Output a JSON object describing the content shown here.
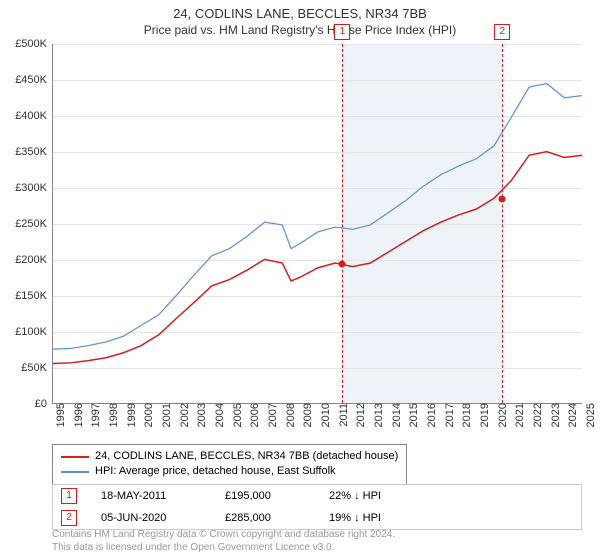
{
  "title": "24, CODLINS LANE, BECCLES, NR34 7BB",
  "subtitle": "Price paid vs. HM Land Registry's House Price Index (HPI)",
  "chart": {
    "type": "line",
    "background_color": "#ffffff",
    "grid_color": "#e5e5e5",
    "axis_color": "#888888",
    "ylim": [
      0,
      500000
    ],
    "ytick_step": 50000,
    "y_labels": [
      "£0",
      "£50K",
      "£100K",
      "£150K",
      "£200K",
      "£250K",
      "£300K",
      "£350K",
      "£400K",
      "£450K",
      "£500K"
    ],
    "xlim": [
      1995,
      2025
    ],
    "x_labels": [
      "1995",
      "1996",
      "1997",
      "1998",
      "1999",
      "2000",
      "2001",
      "2002",
      "2003",
      "2004",
      "2005",
      "2006",
      "2007",
      "2008",
      "2009",
      "2010",
      "2011",
      "2012",
      "2013",
      "2014",
      "2015",
      "2016",
      "2017",
      "2018",
      "2019",
      "2020",
      "2021",
      "2022",
      "2023",
      "2024",
      "2025"
    ],
    "shaded_band": {
      "x_start": 2011.38,
      "x_end": 2020.43,
      "color": "#eef3fa"
    },
    "marker_line_color": "#d02020",
    "markers": [
      {
        "idx": "1",
        "x": 2011.38,
        "y": 195000
      },
      {
        "idx": "2",
        "x": 2020.43,
        "y": 285000
      }
    ],
    "series": [
      {
        "name": "price_paid",
        "label": "24, CODLINS LANE, BECCLES, NR34 7BB (detached house)",
        "color": "#d02020",
        "line_width": 1.5,
        "data": [
          [
            1995,
            55000
          ],
          [
            1996,
            56000
          ],
          [
            1997,
            59000
          ],
          [
            1998,
            63000
          ],
          [
            1999,
            70000
          ],
          [
            2000,
            80000
          ],
          [
            2001,
            95000
          ],
          [
            2002,
            118000
          ],
          [
            2003,
            140000
          ],
          [
            2004,
            163000
          ],
          [
            2005,
            172000
          ],
          [
            2006,
            185000
          ],
          [
            2007,
            200000
          ],
          [
            2008,
            195000
          ],
          [
            2008.5,
            170000
          ],
          [
            2009,
            175000
          ],
          [
            2010,
            188000
          ],
          [
            2011,
            195000
          ],
          [
            2012,
            190000
          ],
          [
            2013,
            195000
          ],
          [
            2014,
            210000
          ],
          [
            2015,
            225000
          ],
          [
            2016,
            240000
          ],
          [
            2017,
            252000
          ],
          [
            2018,
            262000
          ],
          [
            2019,
            270000
          ],
          [
            2020,
            285000
          ],
          [
            2021,
            310000
          ],
          [
            2022,
            345000
          ],
          [
            2023,
            350000
          ],
          [
            2024,
            342000
          ],
          [
            2025,
            345000
          ]
        ]
      },
      {
        "name": "hpi",
        "label": "HPI: Average price, detached house, East Suffolk",
        "color": "#5b8fd6",
        "line_width": 1.2,
        "data": [
          [
            1995,
            75000
          ],
          [
            1996,
            76000
          ],
          [
            1997,
            80000
          ],
          [
            1998,
            85000
          ],
          [
            1999,
            93000
          ],
          [
            2000,
            108000
          ],
          [
            2001,
            123000
          ],
          [
            2002,
            150000
          ],
          [
            2003,
            178000
          ],
          [
            2004,
            205000
          ],
          [
            2005,
            215000
          ],
          [
            2006,
            232000
          ],
          [
            2007,
            252000
          ],
          [
            2008,
            248000
          ],
          [
            2008.5,
            215000
          ],
          [
            2009,
            222000
          ],
          [
            2010,
            238000
          ],
          [
            2011,
            245000
          ],
          [
            2012,
            242000
          ],
          [
            2013,
            248000
          ],
          [
            2014,
            265000
          ],
          [
            2015,
            282000
          ],
          [
            2016,
            302000
          ],
          [
            2017,
            318000
          ],
          [
            2018,
            330000
          ],
          [
            2019,
            340000
          ],
          [
            2020,
            358000
          ],
          [
            2021,
            398000
          ],
          [
            2022,
            440000
          ],
          [
            2023,
            445000
          ],
          [
            2024,
            425000
          ],
          [
            2025,
            428000
          ]
        ]
      }
    ]
  },
  "legend": {
    "rows": [
      {
        "color": "#d02020",
        "text": "24, CODLINS LANE, BECCLES, NR34 7BB (detached house)"
      },
      {
        "color": "#5b8fd6",
        "text": "HPI: Average price, detached house, East Suffolk"
      }
    ]
  },
  "sales": [
    {
      "idx": "1",
      "date": "18-MAY-2011",
      "price": "£195,000",
      "diff": "22% ↓ HPI"
    },
    {
      "idx": "2",
      "date": "05-JUN-2020",
      "price": "£285,000",
      "diff": "19% ↓ HPI"
    }
  ],
  "license_line1": "Contains HM Land Registry data © Crown copyright and database right 2024.",
  "license_line2": "This data is licensed under the Open Government Licence v3.0."
}
